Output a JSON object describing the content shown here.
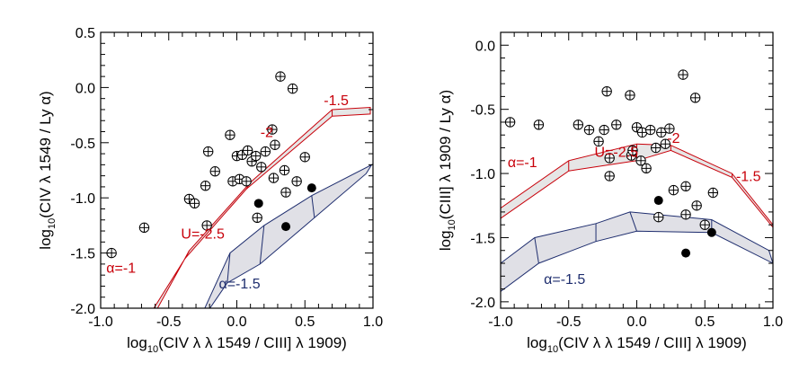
{
  "chart_data": [
    {
      "type": "scatter",
      "xlabel": "log10(CIV λ λ 1549 / CIII] λ 1909)",
      "ylabel": "log10(CIV λ 1549 / Ly α)",
      "xlabel_parts": {
        "pre": "log",
        "sub": "10",
        "post": "(CIV λ λ 1549 / CIII] λ 1909)"
      },
      "ylabel_parts": {
        "pre": "log",
        "sub": "10",
        "post": "(CIV λ 1549 / Ly α)"
      },
      "xlim": [
        -1.0,
        1.0
      ],
      "ylim": [
        -2.0,
        0.5
      ],
      "xticks": [
        -1.0,
        -0.5,
        0.0,
        0.5,
        1.0
      ],
      "xtick_labels": [
        "-1.0",
        "-0.5",
        "0.0",
        "0.5",
        "1.0"
      ],
      "yticks": [
        -2.0,
        -1.5,
        -1.0,
        -0.5,
        0.0,
        0.5
      ],
      "ytick_labels": [
        "-2.0",
        "-1.5",
        "-1.0",
        "-0.5",
        "0.0",
        "0.5"
      ],
      "xminor": 0.1,
      "yminor": 0.1,
      "grid": false,
      "series": [
        {
          "marker": "circle-plus",
          "color": "#000000",
          "points": [
            [
              -0.92,
              -1.5
            ],
            [
              -0.68,
              -1.27
            ],
            [
              -0.35,
              -1.01
            ],
            [
              -0.31,
              -1.05
            ],
            [
              -0.23,
              -0.89
            ],
            [
              -0.22,
              -1.25
            ],
            [
              -0.21,
              -0.58
            ],
            [
              -0.16,
              -0.76
            ],
            [
              -0.05,
              -0.43
            ],
            [
              -0.03,
              -0.85
            ],
            [
              0.0,
              -0.62
            ],
            [
              0.02,
              -0.83
            ],
            [
              0.04,
              -0.61
            ],
            [
              0.07,
              -0.85
            ],
            [
              0.08,
              -0.57
            ],
            [
              0.11,
              -0.67
            ],
            [
              0.14,
              -0.62
            ],
            [
              0.15,
              -1.18
            ],
            [
              0.18,
              -0.72
            ],
            [
              0.21,
              -0.58
            ],
            [
              0.26,
              -0.38
            ],
            [
              0.27,
              -0.82
            ],
            [
              0.28,
              -0.52
            ],
            [
              0.32,
              0.1
            ],
            [
              0.35,
              -0.75
            ],
            [
              0.36,
              -0.95
            ],
            [
              0.41,
              -0.01
            ],
            [
              0.44,
              -0.85
            ],
            [
              0.5,
              -0.63
            ]
          ]
        },
        {
          "marker": "filled-circle",
          "color": "#000000",
          "points": [
            [
              0.16,
              -1.05
            ],
            [
              0.36,
              -1.26
            ],
            [
              0.55,
              -0.91
            ]
          ]
        }
      ],
      "bands": [
        {
          "color": "#c8000a",
          "fill": "#e6e6e6",
          "upper": [
            [
              -0.6,
              -2.04
            ],
            [
              -0.35,
              -1.48
            ],
            [
              0.1,
              -0.86
            ],
            [
              0.7,
              -0.2
            ],
            [
              0.98,
              -0.18
            ]
          ],
          "lower": [
            [
              -0.63,
              -2.04
            ],
            [
              -0.38,
              -1.55
            ],
            [
              0.07,
              -0.92
            ],
            [
              0.7,
              -0.26
            ],
            [
              0.98,
              -0.24
            ]
          ]
        },
        {
          "color": "#1e2d6e",
          "fill": "#e0e0e6",
          "upper": [
            [
              -0.25,
              -2.04
            ],
            [
              -0.05,
              -1.5
            ],
            [
              0.2,
              -1.25
            ],
            [
              0.55,
              -0.98
            ],
            [
              0.99,
              -0.7
            ]
          ],
          "lower": [
            [
              -0.22,
              -2.04
            ],
            [
              -0.07,
              -1.77
            ],
            [
              0.17,
              -1.6
            ],
            [
              0.57,
              -1.18
            ],
            [
              0.95,
              -0.78
            ]
          ]
        }
      ],
      "annotations": [
        {
          "text": "-1.5",
          "x": 0.73,
          "y": -0.16,
          "color": "#c8000a",
          "anchor": "middle"
        },
        {
          "text": "-2",
          "x": 0.22,
          "y": -0.45,
          "color": "#c8000a",
          "anchor": "middle"
        },
        {
          "text": "U=-2.5",
          "x": -0.25,
          "y": -1.37,
          "color": "#c8000a",
          "anchor": "middle"
        },
        {
          "text": "α=-1",
          "x": -0.85,
          "y": -1.68,
          "color": "#c8000a",
          "anchor": "middle"
        },
        {
          "text": "α=-1.5",
          "x": 0.02,
          "y": -1.82,
          "color": "#1e2d6e",
          "anchor": "middle"
        }
      ]
    },
    {
      "type": "scatter",
      "xlabel": "log10(CIV λ λ 1549 / CIII] λ 1909)",
      "ylabel": "log10(CIII] λ 1909 / Ly α)",
      "xlabel_parts": {
        "pre": "log",
        "sub": "10",
        "post": "(CIV λ λ 1549 / CIII] λ 1909)"
      },
      "ylabel_parts": {
        "pre": "log",
        "sub": "10",
        "post": "(CIII] λ 1909 / Ly α)"
      },
      "xlim": [
        -1.0,
        1.0
      ],
      "ylim": [
        -2.05,
        0.1
      ],
      "xticks": [
        -1.0,
        -0.5,
        0.0,
        0.5,
        1.0
      ],
      "xtick_labels": [
        "-1.0",
        "-0.5",
        "0.0",
        "0.5",
        "1.0"
      ],
      "yticks": [
        -2.0,
        -1.5,
        -1.0,
        -0.5,
        0.0
      ],
      "ytick_labels": [
        "-2.0",
        "-1.5",
        "-1.0",
        "-0.5",
        "0.0"
      ],
      "xminor": 0.1,
      "yminor": 0.1,
      "grid": false,
      "series": [
        {
          "marker": "circle-plus",
          "color": "#000000",
          "points": [
            [
              -0.93,
              -0.6
            ],
            [
              -0.72,
              -0.62
            ],
            [
              -0.43,
              -0.62
            ],
            [
              -0.35,
              -0.66
            ],
            [
              -0.28,
              -0.75
            ],
            [
              -0.24,
              -0.66
            ],
            [
              -0.22,
              -0.36
            ],
            [
              -0.2,
              -0.88
            ],
            [
              -0.2,
              -1.02
            ],
            [
              -0.15,
              -0.62
            ],
            [
              -0.05,
              -0.39
            ],
            [
              -0.04,
              -0.86
            ],
            [
              -0.03,
              -0.82
            ],
            [
              0.0,
              -0.64
            ],
            [
              0.03,
              -0.9
            ],
            [
              0.04,
              -0.68
            ],
            [
              0.07,
              -0.96
            ],
            [
              0.1,
              -0.66
            ],
            [
              0.14,
              -0.8
            ],
            [
              0.16,
              -1.34
            ],
            [
              0.18,
              -0.68
            ],
            [
              0.21,
              -0.77
            ],
            [
              0.24,
              -0.65
            ],
            [
              0.27,
              -1.13
            ],
            [
              0.34,
              -0.23
            ],
            [
              0.36,
              -1.1
            ],
            [
              0.36,
              -1.32
            ],
            [
              0.43,
              -0.41
            ],
            [
              0.44,
              -1.25
            ],
            [
              0.5,
              -1.4
            ],
            [
              0.56,
              -1.15
            ]
          ]
        },
        {
          "marker": "filled-circle",
          "color": "#000000",
          "points": [
            [
              0.16,
              -1.21
            ],
            [
              0.36,
              -1.62
            ],
            [
              0.55,
              -1.46
            ]
          ]
        }
      ],
      "bands": [
        {
          "color": "#c8000a",
          "fill": "#e6e6e6",
          "upper": [
            [
              -1.0,
              -1.27
            ],
            [
              -0.5,
              -0.9
            ],
            [
              0.0,
              -0.77
            ],
            [
              0.25,
              -0.78
            ],
            [
              0.7,
              -1.0
            ],
            [
              1.0,
              -1.4
            ]
          ],
          "lower": [
            [
              -1.0,
              -1.35
            ],
            [
              -0.5,
              -0.98
            ],
            [
              0.0,
              -0.9
            ],
            [
              0.25,
              -0.82
            ],
            [
              0.7,
              -1.03
            ],
            [
              1.0,
              -1.42
            ]
          ]
        },
        {
          "color": "#1e2d6e",
          "fill": "#e0e0e6",
          "upper": [
            [
              -1.0,
              -1.7
            ],
            [
              -0.75,
              -1.5
            ],
            [
              -0.3,
              -1.39
            ],
            [
              -0.05,
              -1.3
            ],
            [
              0.55,
              -1.36
            ],
            [
              0.97,
              -1.6
            ]
          ],
          "lower": [
            [
              -1.0,
              -1.92
            ],
            [
              -0.72,
              -1.7
            ],
            [
              -0.3,
              -1.53
            ],
            [
              0.0,
              -1.45
            ],
            [
              0.55,
              -1.46
            ],
            [
              1.0,
              -1.7
            ]
          ]
        }
      ],
      "annotations": [
        {
          "text": "-1.5",
          "x": 0.82,
          "y": -1.06,
          "color": "#c8000a",
          "anchor": "middle"
        },
        {
          "text": "-2",
          "x": 0.27,
          "y": -0.76,
          "color": "#c8000a",
          "anchor": "middle"
        },
        {
          "text": "U=-2.5",
          "x": -0.15,
          "y": -0.87,
          "color": "#c8000a",
          "anchor": "middle"
        },
        {
          "text": "α=-1",
          "x": -0.84,
          "y": -0.95,
          "color": "#c8000a",
          "anchor": "middle"
        },
        {
          "text": "α=-1.5",
          "x": -0.53,
          "y": -1.86,
          "color": "#1e2d6e",
          "anchor": "middle"
        }
      ]
    }
  ]
}
